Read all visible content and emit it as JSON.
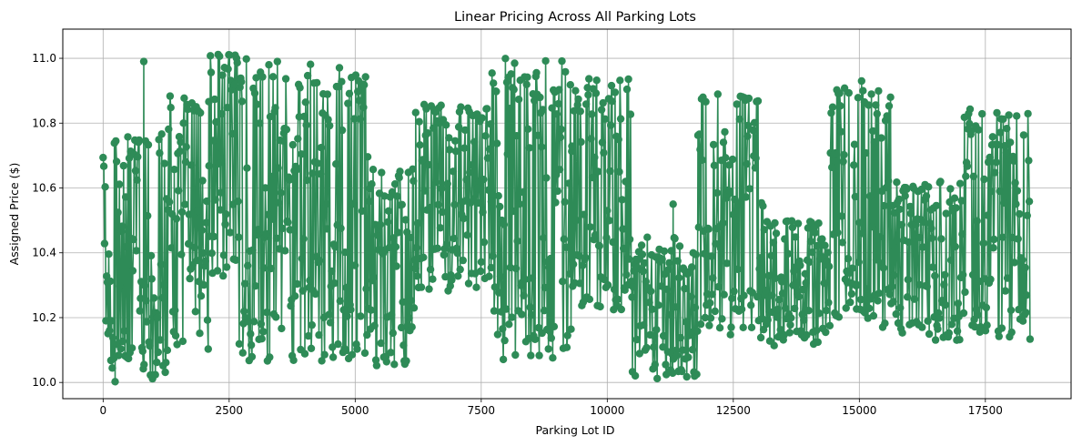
{
  "chart_data": {
    "type": "line",
    "title": "Linear Pricing Across All Parking Lots",
    "xlabel": "Parking Lot ID",
    "ylabel": "Assigned Price ($)",
    "xlim": [
      -800,
      19200
    ],
    "ylim": [
      9.95,
      11.09
    ],
    "x_ticks": [
      0,
      2500,
      5000,
      7500,
      10000,
      12500,
      15000,
      17500
    ],
    "x_tick_labels": [
      "0",
      "2500",
      "5000",
      "7500",
      "10000",
      "12500",
      "15000",
      "17500"
    ],
    "y_ticks": [
      10.0,
      10.2,
      10.4,
      10.6,
      10.8,
      11.0
    ],
    "y_tick_labels": [
      "10.0",
      "10.2",
      "10.4",
      "10.6",
      "10.8",
      "11.0"
    ],
    "grid": true,
    "marker": "circle",
    "color": "#2e8b57",
    "series": [
      {
        "name": "",
        "segments": [
          {
            "x_start": 0,
            "x_end": 1300,
            "low": 10.0,
            "high": 10.77,
            "peak": 10.99
          },
          {
            "x_start": 1300,
            "x_end": 2100,
            "low": 10.1,
            "high": 10.89
          },
          {
            "x_start": 2100,
            "x_end": 2700,
            "low": 10.3,
            "high": 11.04
          },
          {
            "x_start": 2700,
            "x_end": 5300,
            "low": 10.06,
            "high": 11.0
          },
          {
            "x_start": 5300,
            "x_end": 6200,
            "low": 10.05,
            "high": 10.66
          },
          {
            "x_start": 6200,
            "x_end": 7700,
            "low": 10.28,
            "high": 10.86
          },
          {
            "x_start": 7700,
            "x_end": 9300,
            "low": 10.07,
            "high": 11.0
          },
          {
            "x_start": 9300,
            "x_end": 10500,
            "low": 10.22,
            "high": 10.95
          },
          {
            "x_start": 10500,
            "x_end": 11800,
            "low": 10.01,
            "high": 10.45,
            "peak": 10.55
          },
          {
            "x_start": 11800,
            "x_end": 13100,
            "low": 10.13,
            "high": 10.9
          },
          {
            "x_start": 13100,
            "x_end": 14400,
            "low": 10.11,
            "high": 10.5
          },
          {
            "x_start": 14400,
            "x_end": 15700,
            "low": 10.17,
            "high": 10.93
          },
          {
            "x_start": 15700,
            "x_end": 17000,
            "low": 10.13,
            "high": 10.62
          },
          {
            "x_start": 17000,
            "x_end": 18400,
            "low": 10.13,
            "high": 10.85
          }
        ]
      }
    ]
  }
}
